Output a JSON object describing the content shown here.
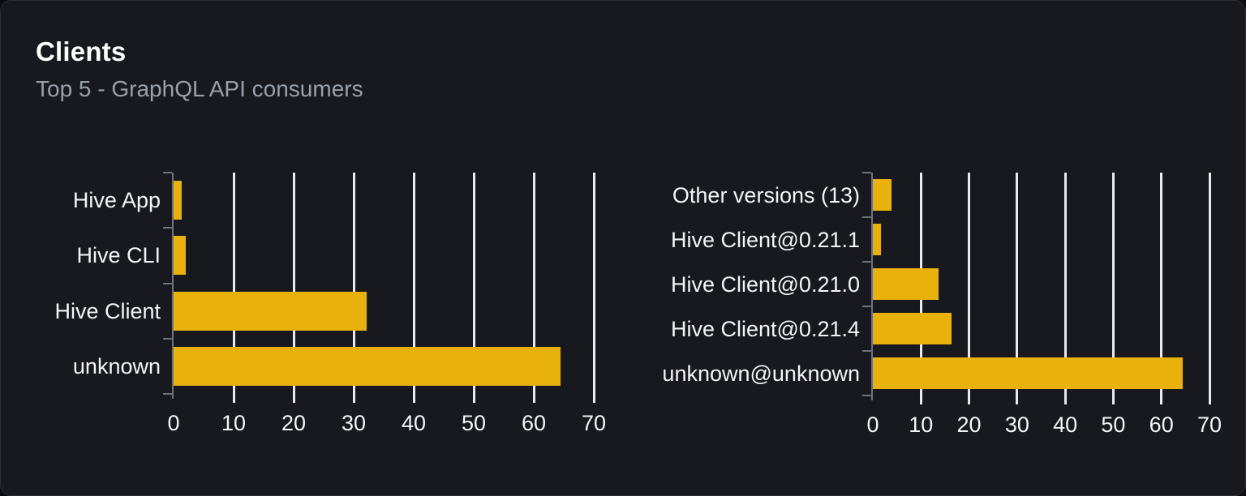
{
  "card": {
    "title": "Clients",
    "subtitle": "Top 5 - GraphQL API consumers"
  },
  "colors": {
    "page_bg": "#0b0c0f",
    "card_bg": "#17191e",
    "card_border": "#2b2d33",
    "bar": "#e8b10c",
    "gridline": "#e8eaee",
    "axis": "#6e727a",
    "title_text": "#ffffff",
    "subtitle_text": "#9aa0ab",
    "label_text": "#f3f4f6"
  },
  "chart_data": [
    {
      "type": "bar",
      "orientation": "horizontal",
      "categories": [
        "Hive App",
        "Hive CLI",
        "Hive Client",
        "unknown"
      ],
      "values": [
        1.4,
        2.0,
        32.2,
        64.4
      ],
      "xlim": [
        0,
        70
      ],
      "xticks": [
        0,
        10,
        20,
        30,
        40,
        50,
        60,
        70
      ],
      "grid": true,
      "legend": false,
      "bar_color": "#e8b10c"
    },
    {
      "type": "bar",
      "orientation": "horizontal",
      "categories": [
        "Other versions (13)",
        "Hive Client@0.21.1",
        "Hive Client@0.21.0",
        "Hive Client@0.21.4",
        "unknown@unknown"
      ],
      "values": [
        3.8,
        1.7,
        13.7,
        16.4,
        64.5
      ],
      "xlim": [
        0,
        70
      ],
      "xticks": [
        0,
        10,
        20,
        30,
        40,
        50,
        60,
        70
      ],
      "grid": true,
      "legend": false,
      "bar_color": "#e8b10c"
    }
  ]
}
